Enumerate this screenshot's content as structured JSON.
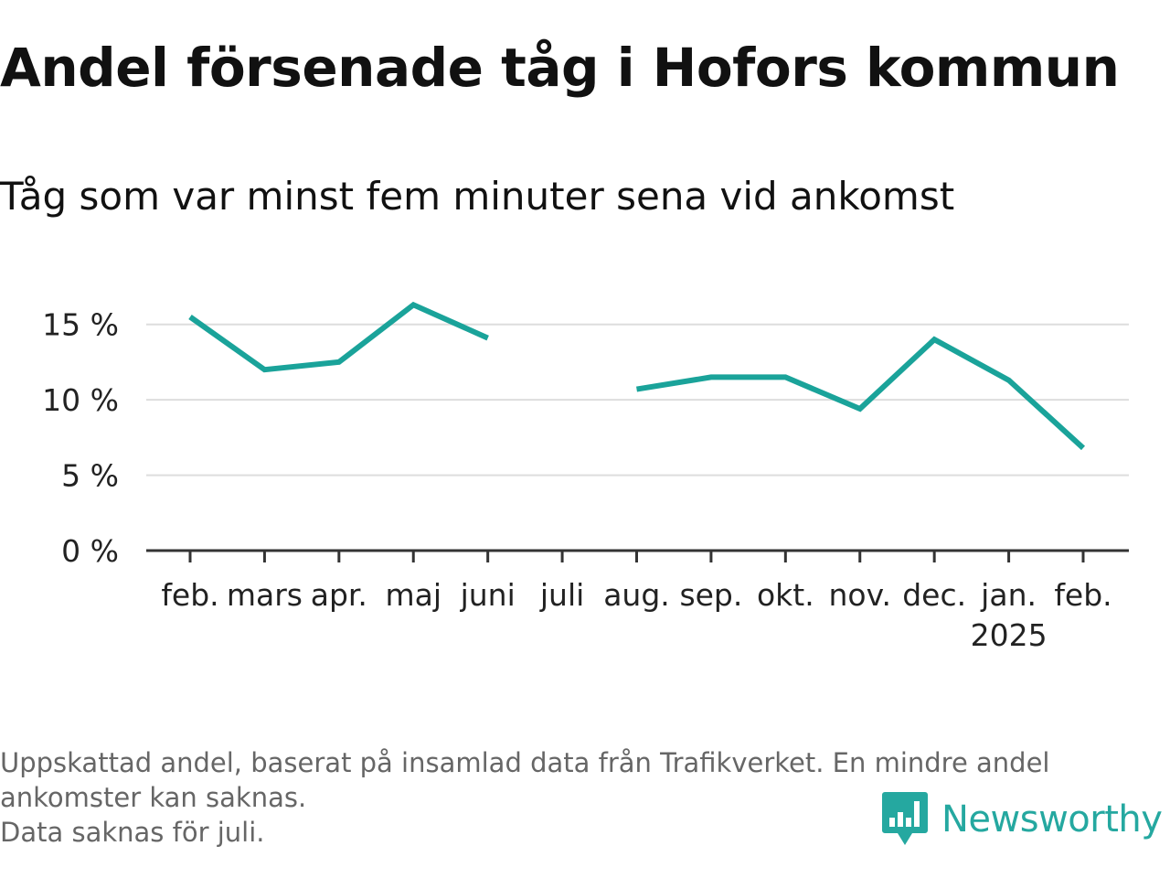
{
  "title": "Andel försenade tåg i Hofors kommun",
  "subtitle": "Tåg som var minst fem minuter sena vid ankomst",
  "footnote": {
    "line1": "Uppskattad andel, baserat på insamlad data från Trafikverket. En mindre andel",
    "line2": "ankomster kan saknas.",
    "line3": "Data saknas för juli."
  },
  "logo": {
    "text": "Newsworthy",
    "icon": "bar-chart-speech-bubble-icon",
    "color": "#25a8a0"
  },
  "chart_data": {
    "type": "line",
    "categories": [
      "feb.",
      "mars",
      "apr.",
      "maj",
      "juni",
      "juli",
      "aug.",
      "sep.",
      "okt.",
      "nov.",
      "dec.",
      "jan.",
      "feb."
    ],
    "year_labels": [
      {
        "index": 11,
        "label": "2025"
      }
    ],
    "series": [
      {
        "values": [
          15.5,
          12.0,
          12.5,
          16.3,
          14.1,
          null,
          10.7,
          11.5,
          11.5,
          9.4,
          14.0,
          11.3,
          6.8
        ],
        "color": "#1aa39a"
      }
    ],
    "y_ticks": [
      0,
      5,
      10,
      15
    ],
    "y_tick_labels": [
      "0 %",
      "5 %",
      "10 %",
      "15 %"
    ],
    "ylim": [
      0,
      16.5
    ],
    "grid": true,
    "missing": [
      "juli"
    ]
  }
}
